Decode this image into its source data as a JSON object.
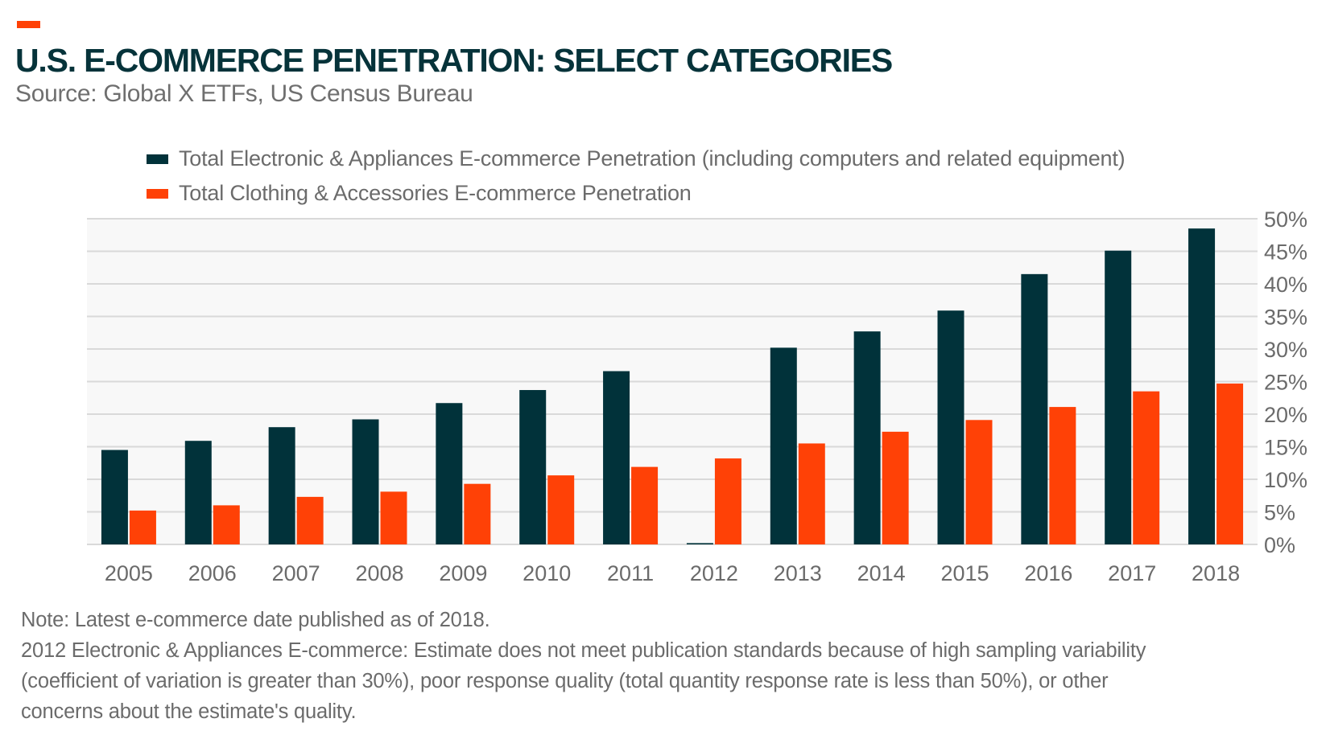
{
  "header": {
    "title": "U.S. E-COMMERCE PENETRATION: SELECT CATEGORIES",
    "subtitle": "Source: Global X ETFs, US Census Bureau",
    "accent_color": "#ff4106"
  },
  "notes": [
    "Note: Latest e-commerce date published as of 2018.",
    "2012 Electronic & Appliances E-commerce: Estimate does not meet publication standards because of high sampling variability",
    "(coefficient of variation is greater than 30%), poor response quality (total quantity response rate is less than 50%), or other",
    "concerns about the estimate's quality."
  ],
  "chart_data": {
    "type": "bar",
    "title": "U.S. E-COMMERCE PENETRATION: SELECT CATEGORIES",
    "xlabel": "",
    "ylabel": "",
    "categories": [
      "2005",
      "2006",
      "2007",
      "2008",
      "2009",
      "2010",
      "2011",
      "2012",
      "2013",
      "2014",
      "2015",
      "2016",
      "2017",
      "2018"
    ],
    "series": [
      {
        "name": "Total Electronic & Appliances E-commerce Penetration (including computers and related equipment)",
        "color": "#01323a",
        "values": [
          14.5,
          15.9,
          18.0,
          19.2,
          21.7,
          23.7,
          26.6,
          0.2,
          30.2,
          32.7,
          35.9,
          41.5,
          45.1,
          48.5
        ]
      },
      {
        "name": "Total Clothing & Accessories E-commerce Penetration",
        "color": "#ff4106",
        "values": [
          5.2,
          6.0,
          7.3,
          8.1,
          9.3,
          10.6,
          11.9,
          13.2,
          15.5,
          17.3,
          19.1,
          21.1,
          23.5,
          24.7
        ]
      }
    ],
    "ylim": [
      0,
      50
    ],
    "yticks": [
      "0%",
      "5%",
      "10%",
      "15%",
      "20%",
      "25%",
      "30%",
      "35%",
      "40%",
      "45%",
      "50%"
    ],
    "y_axis_position": "right",
    "grid": true,
    "legend_position": "top"
  }
}
